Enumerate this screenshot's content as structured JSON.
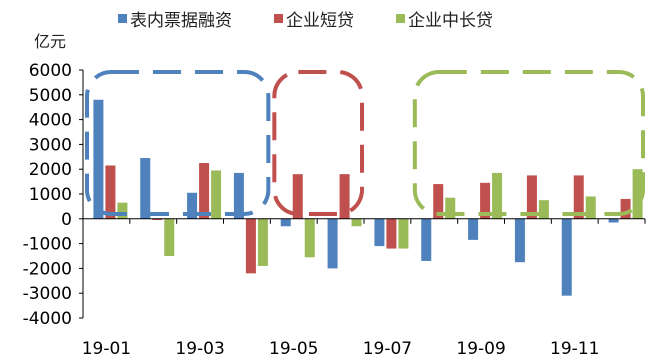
{
  "chart_data": {
    "type": "bar",
    "ylabel": "亿元",
    "ylim": [
      -4000,
      6000
    ],
    "yticks": [
      6000,
      5000,
      4000,
      3000,
      2000,
      1000,
      0,
      -1000,
      -2000,
      -3000,
      -4000
    ],
    "categories": [
      "19-01",
      "19-02",
      "19-03",
      "19-04",
      "19-05",
      "19-06",
      "19-07",
      "19-08",
      "19-09",
      "19-10",
      "19-11",
      "19-12"
    ],
    "xtick_labels": [
      "19-01",
      "19-03",
      "19-05",
      "19-07",
      "19-09",
      "19-11"
    ],
    "series": [
      {
        "name": "表内票据融资",
        "color": "#4F81BD",
        "values": [
          4800,
          2450,
          1050,
          1850,
          -300,
          -2000,
          -1100,
          -1700,
          -850,
          -1750,
          -3100,
          -150
        ]
      },
      {
        "name": "企业短贷",
        "color": "#C0504D",
        "values": [
          2150,
          -50,
          2250,
          -2200,
          1800,
          1800,
          -1200,
          1400,
          1450,
          1750,
          1750,
          800
        ]
      },
      {
        "name": "企业中长贷",
        "color": "#9BBB59",
        "values": [
          650,
          -1500,
          1950,
          -1900,
          -1550,
          -300,
          -1200,
          850,
          1850,
          750,
          900,
          2000
        ]
      }
    ],
    "legend_position": "top",
    "grid": false,
    "annotations": [
      {
        "shape": "dashed-rounded-rect",
        "color": "#4F81BD",
        "from": "19-01",
        "to": "19-04"
      },
      {
        "shape": "dashed-rounded-rect",
        "color": "#C0504D",
        "from": "19-05",
        "to": "19-06"
      },
      {
        "shape": "dashed-rounded-rect",
        "color": "#9BBB59",
        "from": "19-08",
        "to": "19-12"
      }
    ]
  }
}
